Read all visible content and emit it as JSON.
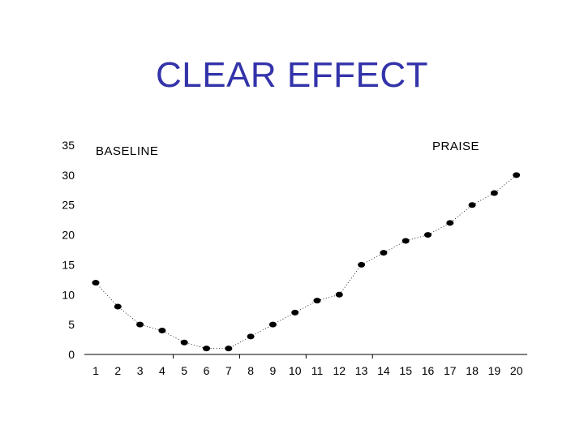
{
  "title": "CLEAR EFFECT",
  "colors": {
    "title": "#3333aa",
    "points": "#000000",
    "axis": "#000000"
  },
  "chart_data": {
    "type": "scatter",
    "title": "CLEAR EFFECT",
    "xlabel": "",
    "ylabel": "",
    "x": [
      1,
      2,
      3,
      4,
      5,
      6,
      7,
      8,
      9,
      10,
      11,
      12,
      13,
      14,
      15,
      16,
      17,
      18,
      19,
      20
    ],
    "series": [
      {
        "values": [
          12,
          8,
          5,
          4,
          2,
          1,
          1,
          3,
          5,
          7,
          9,
          10,
          15,
          17,
          19,
          20,
          22,
          25,
          27,
          30
        ]
      }
    ],
    "connector": "dotted",
    "xlim": [
      1,
      20
    ],
    "ylim": [
      0,
      35
    ],
    "yticks": [
      0,
      5,
      10,
      15,
      20,
      25,
      30,
      35
    ],
    "xticks": [
      "1",
      "2",
      "3",
      "4",
      "5",
      "6",
      "7",
      "8",
      "9",
      "10",
      "11",
      "12",
      "13",
      "14",
      "15",
      "16",
      "17",
      "18",
      "19",
      "20"
    ],
    "grid": false,
    "annotations": [
      {
        "text": "BASELINE"
      },
      {
        "text": "PRAISE"
      }
    ]
  }
}
